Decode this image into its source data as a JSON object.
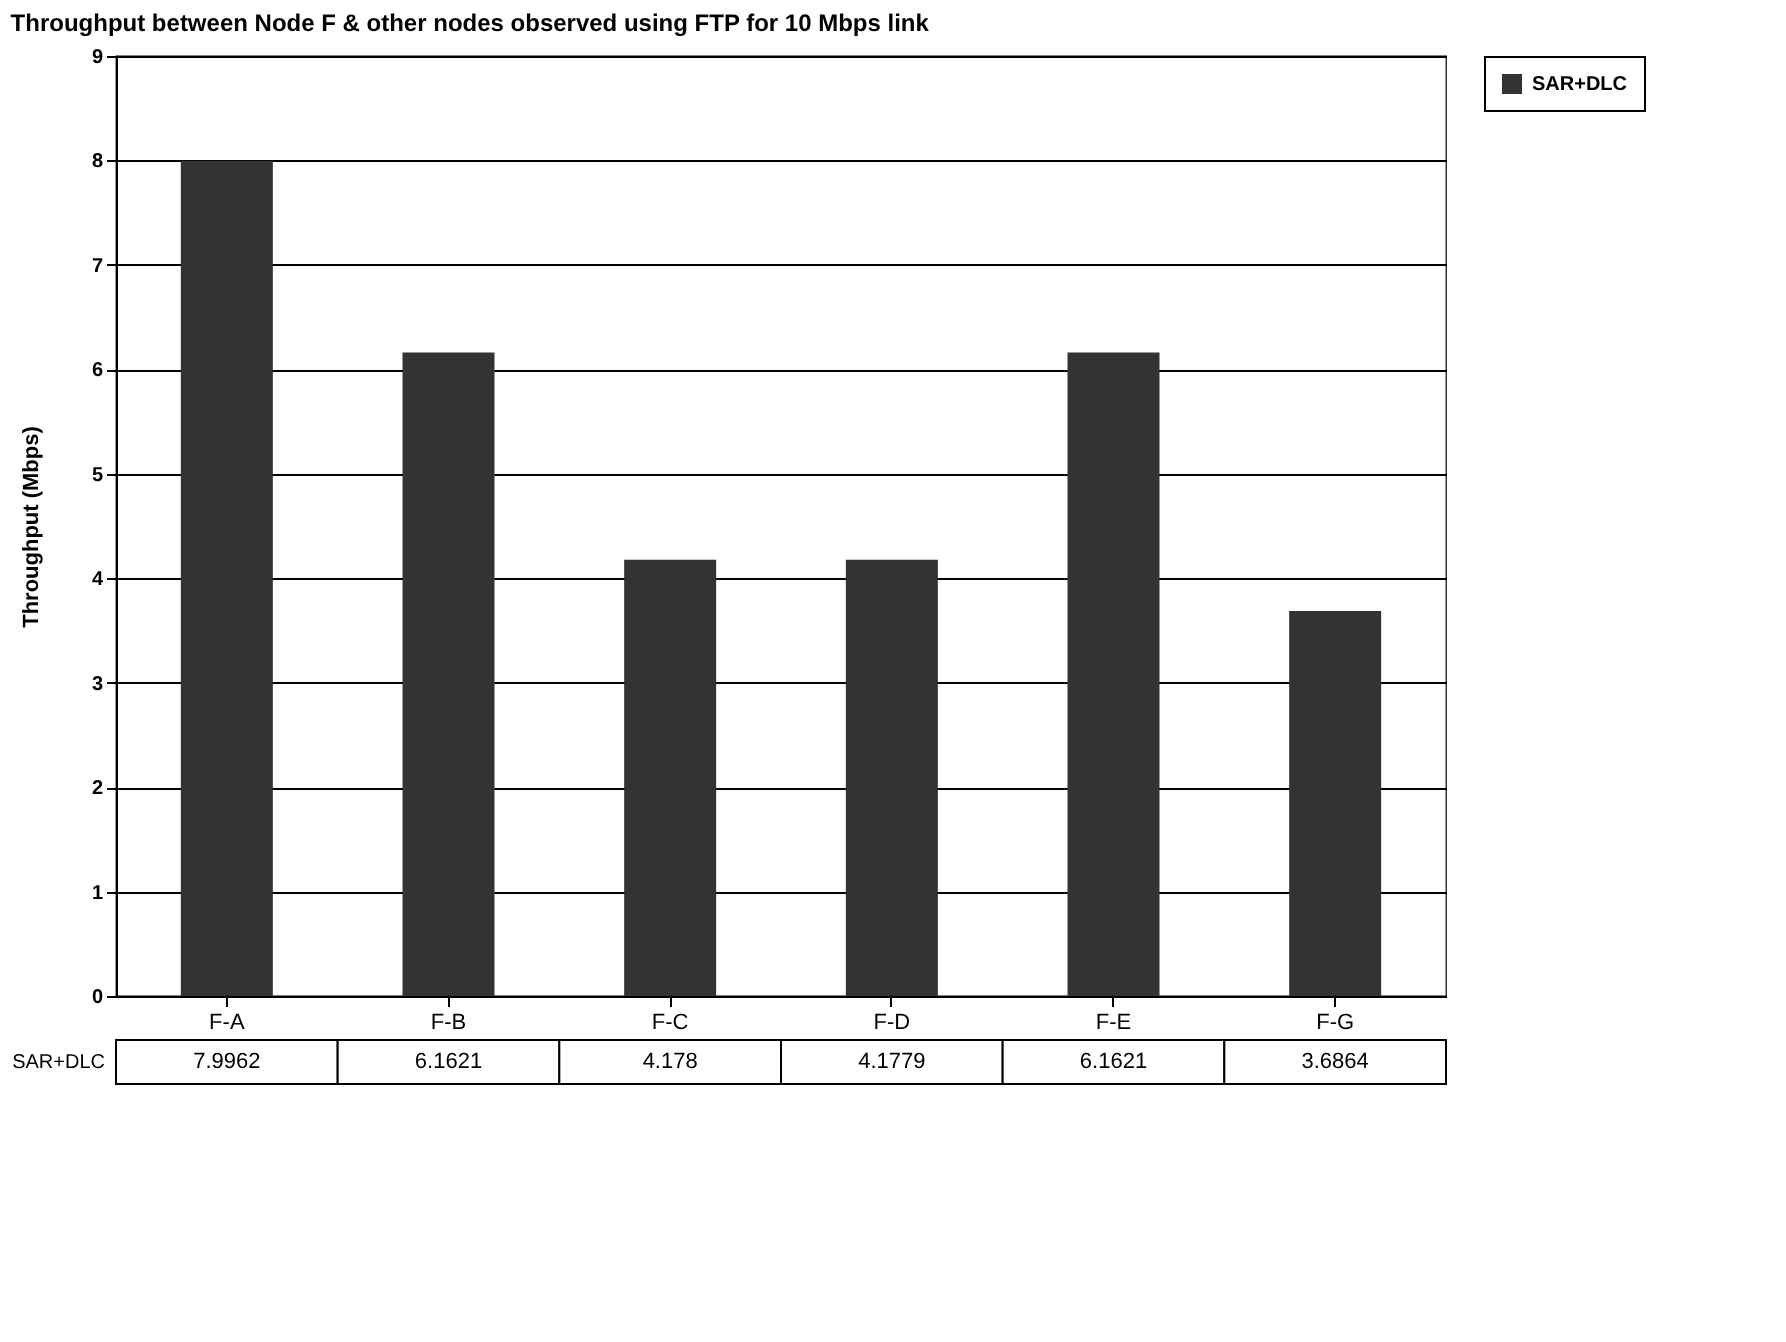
{
  "chart_data": {
    "type": "bar",
    "title": "Throughput between Node F & other nodes observed using FTP for 10 Mbps link",
    "ylabel": "Throughput (Mbps)",
    "categories": [
      "F-A",
      "F-B",
      "F-C",
      "F-D",
      "F-E",
      "F-G"
    ],
    "series": [
      {
        "name": "SAR+DLC",
        "color": "#333333",
        "values": [
          7.9962,
          6.1621,
          4.178,
          4.1779,
          6.1621,
          3.6864
        ]
      }
    ],
    "ylim": [
      0,
      9
    ],
    "yticks": [
      0,
      1,
      2,
      3,
      4,
      5,
      6,
      7,
      8,
      9
    ],
    "grid": "y",
    "legend": "top right",
    "data_labels": true
  }
}
